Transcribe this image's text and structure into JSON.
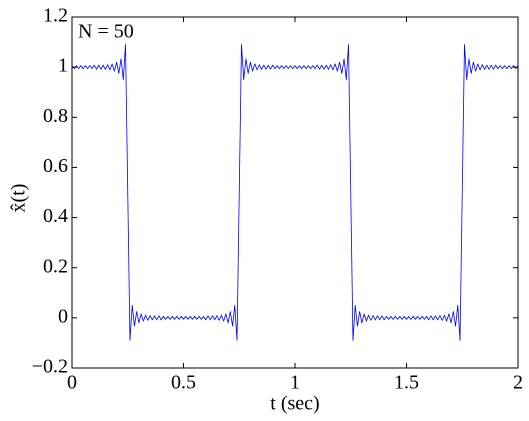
{
  "chart_data": {
    "type": "line",
    "annotation": "N = 50",
    "xlabel": "t (sec)",
    "ylabel": "x̂(t)",
    "color": "#0000ff",
    "xlim": [
      0,
      2
    ],
    "ylim": [
      -0.2,
      1.2
    ],
    "xticks": [
      0,
      0.5,
      1,
      1.5,
      2
    ],
    "yticks": [
      {
        "value": -0.2,
        "label": "−0.2"
      },
      0,
      0.2,
      0.4,
      0.6,
      0.8,
      1,
      1.2
    ],
    "x": [
      0,
      0.01,
      0.02,
      0.03,
      0.04,
      0.05,
      0.06,
      0.07,
      0.08,
      0.09,
      0.1,
      0.11,
      0.12,
      0.13,
      0.14,
      0.15,
      0.16,
      0.17,
      0.18,
      0.19,
      0.2,
      0.21,
      0.22,
      0.23,
      0.24,
      0.25,
      0.26,
      0.27,
      0.28,
      0.29,
      0.3,
      0.31,
      0.32,
      0.33,
      0.34,
      0.35,
      0.36,
      0.37,
      0.38,
      0.39,
      0.4,
      0.41,
      0.42,
      0.43,
      0.44,
      0.45,
      0.46,
      0.47,
      0.48,
      0.49,
      0.5,
      0.51,
      0.52,
      0.53,
      0.54,
      0.55,
      0.56,
      0.57,
      0.58,
      0.59,
      0.6,
      0.61,
      0.62,
      0.63,
      0.64,
      0.65,
      0.66,
      0.67,
      0.68,
      0.69,
      0.7,
      0.71,
      0.72,
      0.73,
      0.74,
      0.75,
      0.76,
      0.77,
      0.78,
      0.79,
      0.8,
      0.81,
      0.82,
      0.83,
      0.84,
      0.85,
      0.86,
      0.87,
      0.88,
      0.89,
      0.9,
      0.91,
      0.92,
      0.93,
      0.94,
      0.95,
      0.96,
      0.97,
      0.98,
      0.99,
      1,
      1.01,
      1.02,
      1.03,
      1.04,
      1.05,
      1.06,
      1.07,
      1.08,
      1.09,
      1.1,
      1.11,
      1.12,
      1.13,
      1.14,
      1.15,
      1.16,
      1.17,
      1.18,
      1.19,
      1.2,
      1.21,
      1.22,
      1.23,
      1.24,
      1.25,
      1.26,
      1.27,
      1.28,
      1.29,
      1.3,
      1.31,
      1.32,
      1.33,
      1.34,
      1.35,
      1.36,
      1.37,
      1.38,
      1.39,
      1.4,
      1.41,
      1.42,
      1.43,
      1.44,
      1.45,
      1.46,
      1.47,
      1.48,
      1.49,
      1.5,
      1.51,
      1.52,
      1.53,
      1.54,
      1.55,
      1.56,
      1.57,
      1.58,
      1.59,
      1.6,
      1.61,
      1.62,
      1.63,
      1.64,
      1.65,
      1.66,
      1.67,
      1.68,
      1.69,
      1.7,
      1.71,
      1.72,
      1.73,
      1.74,
      1.75,
      1.76,
      1.77,
      1.78,
      1.79,
      1.8,
      1.81,
      1.82,
      1.83,
      1.84,
      1.85,
      1.86,
      1.87,
      1.88,
      1.89,
      1.9,
      1.91,
      1.92,
      1.93,
      1.94,
      1.95,
      1.96,
      1.97,
      1.98,
      1.99,
      2
    ],
    "values": [
      1.006,
      0.994,
      1.006,
      0.994,
      1.006,
      0.994,
      1.006,
      0.994,
      1.006,
      0.994,
      1.008,
      0.992,
      1.008,
      0.992,
      1.008,
      0.991,
      1.01,
      0.989,
      1.013,
      0.984,
      1.02,
      0.975,
      1.033,
      0.95,
      1.09,
      0.5,
      -0.09,
      0.05,
      -0.033,
      0.025,
      -0.02,
      0.016,
      -0.013,
      0.011,
      -0.01,
      0.009,
      -0.008,
      0.008,
      -0.008,
      0.008,
      -0.008,
      0.006,
      -0.006,
      0.006,
      -0.006,
      0.006,
      -0.006,
      0.006,
      -0.006,
      0.006,
      -0.006,
      0.006,
      -0.006,
      0.006,
      -0.006,
      0.006,
      -0.006,
      0.006,
      -0.006,
      0.006,
      -0.008,
      0.008,
      -0.008,
      0.008,
      -0.008,
      0.009,
      -0.01,
      0.011,
      -0.013,
      0.016,
      -0.02,
      0.025,
      -0.033,
      0.05,
      -0.09,
      0.5,
      1.09,
      0.95,
      1.033,
      0.975,
      1.02,
      0.984,
      1.013,
      0.989,
      1.01,
      0.991,
      1.008,
      0.992,
      1.008,
      0.992,
      1.008,
      0.994,
      1.006,
      0.994,
      1.006,
      0.994,
      1.006,
      0.994,
      1.006,
      0.994,
      1.006,
      0.994,
      1.006,
      0.994,
      1.006,
      0.994,
      1.006,
      0.994,
      1.006,
      0.994,
      1.008,
      0.992,
      1.008,
      0.992,
      1.008,
      0.991,
      1.01,
      0.989,
      1.013,
      0.984,
      1.02,
      0.975,
      1.033,
      0.95,
      1.09,
      0.5,
      -0.09,
      0.05,
      -0.033,
      0.025,
      -0.02,
      0.016,
      -0.013,
      0.011,
      -0.01,
      0.009,
      -0.008,
      0.008,
      -0.008,
      0.008,
      -0.008,
      0.006,
      -0.006,
      0.006,
      -0.006,
      0.006,
      -0.006,
      0.006,
      -0.006,
      0.006,
      -0.006,
      0.006,
      -0.006,
      0.006,
      -0.006,
      0.006,
      -0.006,
      0.006,
      -0.006,
      0.006,
      -0.008,
      0.008,
      -0.008,
      0.008,
      -0.008,
      0.009,
      -0.01,
      0.011,
      -0.013,
      0.016,
      -0.02,
      0.025,
      -0.033,
      0.05,
      -0.09,
      0.5,
      1.09,
      0.95,
      1.033,
      0.975,
      1.02,
      0.984,
      1.013,
      0.989,
      1.01,
      0.991,
      1.008,
      0.992,
      1.008,
      0.992,
      1.008,
      0.994,
      1.006,
      0.994,
      1.006,
      0.994,
      1.006,
      0.994,
      1.006,
      0.994,
      1.006
    ]
  }
}
